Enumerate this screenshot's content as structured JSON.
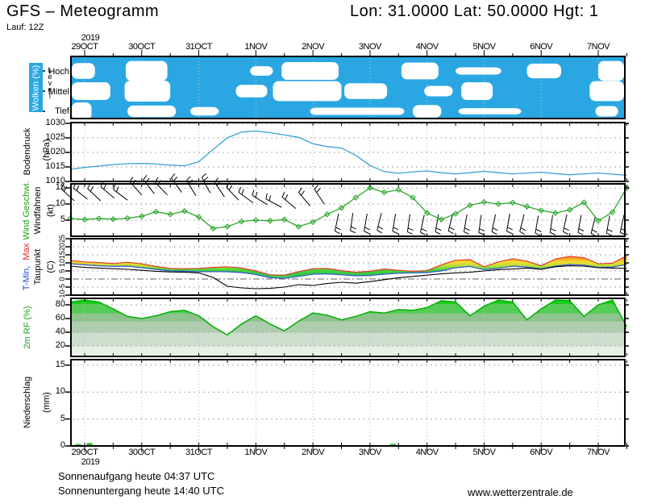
{
  "header": {
    "title": "GFS – Meteogramm",
    "coords": "Lon: 31.0000 Lat: 50.0000 Hgt: 1",
    "run": "Lauf: 12Z"
  },
  "timeline": {
    "year": "2019",
    "days": [
      "29OCT",
      "30OCT",
      "31OCT",
      "1NOV",
      "2NOV",
      "3NOV",
      "4NOV",
      "5NOV",
      "6NOV",
      "7NOV"
    ]
  },
  "panels": {
    "clouds": {
      "label": "Wolken (%)",
      "level": "Level",
      "rows": [
        "Hoch",
        "Mittel",
        "Tief"
      ]
    },
    "pressure": {
      "label": "Bodendruck",
      "unit": "(hPa)",
      "ticks": [
        1010,
        1015,
        1020,
        1025,
        1030
      ]
    },
    "wind": {
      "label": "Wind Geschwi.",
      "label2": "Windfahnen",
      "unit": "(kt)",
      "ticks": [
        5,
        10,
        15
      ]
    },
    "temp": {
      "label_min": "T-Min,",
      "label_max": "Max",
      "label2": "Taupunkt",
      "unit": "(C)",
      "ticks": [
        -10,
        -5,
        0,
        5,
        10,
        15,
        20,
        25
      ]
    },
    "humidity": {
      "label": "2m RF (%)",
      "ticks": [
        20,
        40,
        60,
        80
      ]
    },
    "precip": {
      "label": "Niederschlag",
      "unit": "(mm)",
      "ticks": [
        0,
        5,
        10,
        15
      ]
    }
  },
  "footer": {
    "sunrise": "Sonnenaufgang heute 04:37 UTC",
    "sunset": "Sonnenuntergang heute 14:40 UTC",
    "website": "www.wetterzentrale.de"
  },
  "colors": {
    "cloud_bg": "#2AA7E3",
    "cloud_blob": "#FFFFFF",
    "pressure_line": "#3AA0D8",
    "wind_line": "#2DA82D",
    "tmax_line": "#E8392B",
    "tmin_line": "#3355CC",
    "dew_line": "#000000",
    "rh_line": "#00B000",
    "precip_bar": "#2CC42C",
    "label_green": "#1F9E1F",
    "label_blue": "#2244CC",
    "label_red": "#DD2222",
    "grid": "#AAAAAA",
    "zero_line": "#808080"
  },
  "chart_data": {
    "type": "meteogram",
    "x_unit": "days_from_29OCT_2019",
    "x_days": [
      -0.25,
      0,
      0.25,
      0.5,
      0.75,
      1,
      1.25,
      1.5,
      1.75,
      2,
      2.25,
      2.5,
      2.75,
      3,
      3.25,
      3.5,
      3.75,
      4,
      4.25,
      4.5,
      4.75,
      5,
      5.25,
      5.5,
      5.75,
      6,
      6.25,
      6.5,
      6.75,
      7,
      7.25,
      7.5,
      7.75,
      8,
      8.25,
      8.5,
      8.75,
      9,
      9.25,
      9.5
    ],
    "x_tick_labels": [
      "29OCT",
      "30OCT",
      "31OCT",
      "1NOV",
      "2NOV",
      "3NOV",
      "4NOV",
      "5NOV",
      "6NOV",
      "7NOV"
    ],
    "panels": [
      {
        "id": "clouds",
        "type": "cloud-bands",
        "title": "Wolken (%)",
        "levels": [
          "Hoch",
          "Mittel",
          "Tief"
        ],
        "cloud_periods_days": {
          "Hoch": [
            [
              -0.28,
              0.18,
              0.75
            ],
            [
              0.72,
              1.45,
              0.95
            ],
            [
              2.9,
              3.3,
              0.45
            ],
            [
              3.45,
              4.45,
              0.85
            ],
            [
              5.55,
              6.2,
              0.8
            ],
            [
              6.5,
              7.3,
              0.35
            ],
            [
              7.75,
              8.35,
              0.7
            ],
            [
              9.0,
              9.5,
              0.95
            ]
          ],
          "Mittel": [
            [
              -0.28,
              0.45,
              0.85
            ],
            [
              0.7,
              1.5,
              1.0
            ],
            [
              2.65,
              3.2,
              0.6
            ],
            [
              3.3,
              4.5,
              0.95
            ],
            [
              4.55,
              5.3,
              0.75
            ],
            [
              5.95,
              6.45,
              0.5
            ],
            [
              6.6,
              7.15,
              0.85
            ],
            [
              8.85,
              9.5,
              0.95
            ]
          ],
          "Tief": [
            [
              -0.28,
              0.12,
              0.85
            ],
            [
              0.75,
              1.6,
              0.55
            ],
            [
              1.85,
              2.35,
              0.4
            ],
            [
              3.95,
              5.6,
              0.35
            ],
            [
              5.75,
              6.25,
              0.6
            ],
            [
              6.55,
              7.65,
              0.3
            ],
            [
              8.95,
              9.35,
              0.5
            ]
          ]
        }
      },
      {
        "id": "pressure",
        "type": "line",
        "title": "Bodendruck (hPa)",
        "ylim": [
          1010,
          1030.3
        ],
        "yticks": [
          1010,
          1015,
          1020,
          1025,
          1030
        ],
        "values": [
          1014.2,
          1014.8,
          1015.3,
          1015.8,
          1016.1,
          1016.2,
          1016.0,
          1015.6,
          1015.4,
          1016.8,
          1021.0,
          1025.0,
          1027.0,
          1027.4,
          1026.8,
          1026.0,
          1025.2,
          1023.0,
          1022.0,
          1021.5,
          1019.0,
          1015.5,
          1013.4,
          1012.8,
          1013.3,
          1013.6,
          1013.0,
          1012.6,
          1013.0,
          1013.5,
          1013.0,
          1012.6,
          1012.9,
          1013.2,
          1012.7,
          1012.3,
          1012.6,
          1012.9,
          1012.5,
          1012.1
        ]
      },
      {
        "id": "wind",
        "type": "line",
        "title": "Wind Geschwi. / Windfahnen (kt)",
        "ylim": [
          0,
          16.5
        ],
        "yticks": [
          5,
          10,
          15
        ],
        "values": [
          5.5,
          5.2,
          5.5,
          5.3,
          5.6,
          6.2,
          7.6,
          6.8,
          7.8,
          6.0,
          2.4,
          3.0,
          4.6,
          5.0,
          4.8,
          5.2,
          3.0,
          4.4,
          6.8,
          8.8,
          12.0,
          15.0,
          13.6,
          14.4,
          12.0,
          7.2,
          5.2,
          7.0,
          9.6,
          10.6,
          10.0,
          10.4,
          9.2,
          8.0,
          7.2,
          8.2,
          10.5,
          4.8,
          7.5,
          15.0
        ],
        "barbs": [
          [
            -0.18,
            11.0,
            -48
          ],
          [
            0.05,
            11.5,
            -52
          ],
          [
            0.28,
            11.0,
            -47
          ],
          [
            0.52,
            11.8,
            -50
          ],
          [
            0.75,
            11.2,
            -53
          ],
          [
            1.0,
            12.8,
            -42
          ],
          [
            1.22,
            13.2,
            -38
          ],
          [
            1.45,
            12.8,
            -44
          ],
          [
            1.7,
            13.6,
            -36
          ],
          [
            1.95,
            12.6,
            -32
          ],
          [
            2.2,
            13.4,
            -28
          ],
          [
            2.45,
            12.2,
            -34
          ],
          [
            2.7,
            11.2,
            -44
          ],
          [
            2.95,
            10.4,
            -54
          ],
          [
            3.2,
            9.8,
            -58
          ],
          [
            3.45,
            9.0,
            -62
          ],
          [
            3.7,
            8.6,
            -50
          ],
          [
            3.95,
            9.4,
            -40
          ],
          [
            4.2,
            10.0,
            -34
          ],
          [
            4.45,
            7.0,
            192
          ],
          [
            4.7,
            7.2,
            188
          ],
          [
            4.95,
            7.0,
            190
          ],
          [
            5.2,
            7.2,
            194
          ],
          [
            5.45,
            7.0,
            190
          ],
          [
            5.7,
            6.8,
            188
          ],
          [
            5.95,
            6.6,
            192
          ],
          [
            6.2,
            6.8,
            190
          ],
          [
            6.45,
            7.0,
            194
          ],
          [
            6.7,
            6.8,
            190
          ],
          [
            6.95,
            6.6,
            188
          ],
          [
            7.2,
            6.8,
            192
          ],
          [
            7.45,
            7.0,
            190
          ],
          [
            7.7,
            6.8,
            194
          ],
          [
            7.95,
            6.4,
            190
          ],
          [
            8.2,
            6.6,
            188
          ],
          [
            8.45,
            6.8,
            192
          ],
          [
            8.7,
            6.6,
            190
          ],
          [
            8.95,
            6.2,
            194
          ],
          [
            9.2,
            6.4,
            190
          ],
          [
            9.45,
            6.6,
            192
          ]
        ]
      },
      {
        "id": "temperature",
        "type": "band+line",
        "title": "T-Min, Max / Taupunkt (C)",
        "ylim": [
          -10,
          25
        ],
        "yticks": [
          -10,
          -5,
          0,
          5,
          10,
          15,
          20,
          25
        ],
        "series": [
          {
            "name": "T-Max",
            "values": [
              11.5,
              10.6,
              10.2,
              9.6,
              10.4,
              9.4,
              7.8,
              6.6,
              6.4,
              6.6,
              7.2,
              7.6,
              6.8,
              5.0,
              2.6,
              2.4,
              4.6,
              6.4,
              6.6,
              5.2,
              4.2,
              4.8,
              6.2,
              5.4,
              4.8,
              5.2,
              8.8,
              11.6,
              12.0,
              7.6,
              10.6,
              12.6,
              11.0,
              8.2,
              12.4,
              14.0,
              13.2,
              9.4,
              9.8,
              14.4
            ]
          },
          {
            "name": "T-Min",
            "values": [
              9.5,
              8.8,
              8.2,
              7.8,
              8.0,
              7.0,
              6.0,
              5.0,
              4.8,
              4.5,
              4.6,
              4.5,
              4.0,
              2.8,
              0.8,
              0.4,
              1.6,
              3.0,
              3.2,
              2.6,
              2.0,
              2.2,
              3.0,
              3.6,
              3.8,
              4.0,
              5.0,
              7.0,
              7.8,
              5.8,
              6.6,
              8.0,
              7.4,
              6.2,
              8.0,
              9.0,
              8.6,
              7.2,
              7.4,
              9.0
            ]
          },
          {
            "name": "Taupunkt",
            "values": [
              8.0,
              7.2,
              6.8,
              6.4,
              6.0,
              5.4,
              4.8,
              4.4,
              4.2,
              3.8,
              1.0,
              -4.5,
              -5.5,
              -6.0,
              -5.8,
              -5.0,
              -3.5,
              -4.0,
              -2.8,
              -2.0,
              -2.6,
              -1.6,
              -0.4,
              0.8,
              1.6,
              2.4,
              3.2,
              3.8,
              4.2,
              5.0,
              5.8,
              6.2,
              6.8,
              6.0,
              7.6,
              8.2,
              8.0,
              7.0,
              6.8,
              6.6
            ]
          }
        ]
      },
      {
        "id": "humidity",
        "type": "area",
        "title": "2m RF (%)",
        "ylim": [
          5,
          89
        ],
        "yticks": [
          20,
          40,
          60,
          80
        ],
        "values": [
          84,
          87,
          84,
          74,
          63,
          60,
          64,
          70,
          72,
          64,
          48,
          36,
          52,
          64,
          52,
          42,
          56,
          68,
          65,
          58,
          63,
          70,
          68,
          73,
          72,
          76,
          86,
          84,
          64,
          78,
          87,
          84,
          58,
          74,
          87,
          86,
          63,
          80,
          87,
          48
        ]
      },
      {
        "id": "precipitation",
        "type": "bar",
        "title": "Niederschlag (mm)",
        "ylim": [
          0,
          16
        ],
        "yticks": [
          0,
          5,
          10,
          15
        ],
        "bars": [
          {
            "day": -0.12,
            "mm": 0.35
          },
          {
            "day": 0.08,
            "mm": 0.55
          },
          {
            "day": 5.4,
            "mm": 0.4
          }
        ]
      }
    ]
  }
}
